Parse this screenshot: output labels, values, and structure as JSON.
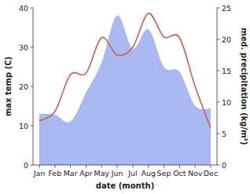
{
  "chart_data": {
    "type": "line",
    "categories": [
      "Jan",
      "Feb",
      "Mar",
      "Apr",
      "May",
      "Jun",
      "Jul",
      "Aug",
      "Sep",
      "Oct",
      "Nov",
      "Dec"
    ],
    "x_label": "date (month)",
    "y_label": "max temp (C)",
    "y2_label": "med. precipitation (kg/m²)",
    "ylim": [
      0,
      40
    ],
    "yticks": [
      0,
      10,
      20,
      30,
      40
    ],
    "y2lim": [
      0,
      25
    ],
    "y2ticks": [
      0,
      5,
      10,
      15,
      20,
      25
    ],
    "series": [
      {
        "name": "med. precipitation",
        "type": "area",
        "axis": "y2",
        "color": "#aab8f2",
        "values": [
          8.1,
          8.0,
          6.9,
          11.5,
          16.3,
          23.8,
          18.5,
          21.6,
          15.6,
          14.8,
          9.4,
          9.0
        ]
      },
      {
        "name": "max temp",
        "type": "line",
        "axis": "y",
        "color": "#cc5a5a",
        "values": [
          11.2,
          13.6,
          23.0,
          23.4,
          32.4,
          28.0,
          30.0,
          38.6,
          32.6,
          32.4,
          20.0,
          9.4
        ]
      }
    ]
  }
}
